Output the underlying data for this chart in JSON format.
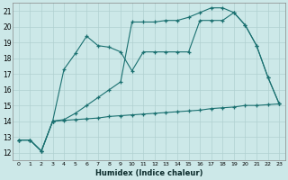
{
  "xlabel": "Humidex (Indice chaleur)",
  "bg_color": "#cce8e8",
  "line_color": "#1a7070",
  "grid_color": "#b0d0d0",
  "xlim": [
    -0.5,
    23.5
  ],
  "ylim": [
    11.5,
    21.5
  ],
  "yticks": [
    12,
    13,
    14,
    15,
    16,
    17,
    18,
    19,
    20,
    21
  ],
  "xticks": [
    0,
    1,
    2,
    3,
    4,
    5,
    6,
    7,
    8,
    9,
    10,
    11,
    12,
    13,
    14,
    15,
    16,
    17,
    18,
    19,
    20,
    21,
    22,
    23
  ],
  "series1_x": [
    0,
    1,
    2,
    3,
    4,
    5,
    6,
    7,
    8,
    9,
    10,
    11,
    12,
    13,
    14,
    15,
    16,
    17,
    18,
    19,
    20,
    21,
    22,
    23
  ],
  "series1_y": [
    12.8,
    12.8,
    12.1,
    14.0,
    14.05,
    14.1,
    14.15,
    14.2,
    14.3,
    14.35,
    14.4,
    14.45,
    14.5,
    14.55,
    14.6,
    14.65,
    14.7,
    14.8,
    14.85,
    14.9,
    15.0,
    15.0,
    15.05,
    15.1
  ],
  "series2_x": [
    0,
    1,
    2,
    3,
    4,
    5,
    6,
    7,
    8,
    9,
    10,
    11,
    12,
    13,
    14,
    15,
    16,
    17,
    18,
    19,
    20,
    21,
    22,
    23
  ],
  "series2_y": [
    12.8,
    12.8,
    12.1,
    14.0,
    17.3,
    18.3,
    19.4,
    18.8,
    18.7,
    18.4,
    17.2,
    18.4,
    18.4,
    18.4,
    18.4,
    18.4,
    20.4,
    20.4,
    20.4,
    20.9,
    20.1,
    18.8,
    16.8,
    15.1
  ],
  "series3_x": [
    0,
    1,
    2,
    3,
    4,
    5,
    6,
    7,
    8,
    9,
    10,
    11,
    12,
    13,
    14,
    15,
    16,
    17,
    18,
    19,
    20,
    21,
    22,
    23
  ],
  "series3_y": [
    12.8,
    12.8,
    12.1,
    14.0,
    14.1,
    14.5,
    15.0,
    15.5,
    16.0,
    16.5,
    20.3,
    20.3,
    20.3,
    20.4,
    20.4,
    20.6,
    20.9,
    21.2,
    21.2,
    20.9,
    20.1,
    18.8,
    16.8,
    15.1
  ]
}
